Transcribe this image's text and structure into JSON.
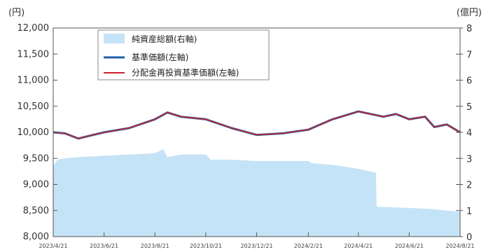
{
  "chart_data": {
    "type": "line",
    "left_unit": "(円)",
    "right_unit": "(億円)",
    "left_axis": {
      "min": 8000,
      "max": 12000,
      "ticks": [
        "8,000",
        "8,500",
        "9,000",
        "9,500",
        "10,000",
        "10,500",
        "11,000",
        "11,500",
        "12,000"
      ]
    },
    "right_axis": {
      "min": 0,
      "max": 8,
      "ticks": [
        "0",
        "1",
        "2",
        "3",
        "4",
        "5",
        "6",
        "7",
        "8"
      ]
    },
    "x_axis": {
      "start": "2023/4/21",
      "end": "2024/8/21",
      "tick_labels": [
        "2023/4/21",
        "2023/6/21",
        "2023/8/21",
        "2023/10/21",
        "2023/12/21",
        "2024/2/21",
        "2024/4/21",
        "2024/6/21",
        "2024/8/21"
      ]
    },
    "legend": {
      "placement": "top-left",
      "entries": [
        {
          "name": "純資産総額(右軸)",
          "color": "#c5e3f6",
          "kind": "area"
        },
        {
          "name": "基準価額(左軸)",
          "color": "#1f5fa8",
          "kind": "line"
        },
        {
          "name": "分配金再投資基準価額(左軸)",
          "color": "#c8232c",
          "kind": "line"
        }
      ]
    },
    "series": [
      {
        "name": "純資産総額(右軸)",
        "axis": "right",
        "points": [
          [
            "2023/4/21",
            2.7
          ],
          [
            "2023/4/26",
            2.95
          ],
          [
            "2023/5/5",
            3.0
          ],
          [
            "2023/5/21",
            3.05
          ],
          [
            "2023/6/21",
            3.1
          ],
          [
            "2023/7/21",
            3.15
          ],
          [
            "2023/8/21",
            3.2
          ],
          [
            "2023/8/31",
            3.35
          ],
          [
            "2023/9/5",
            3.05
          ],
          [
            "2023/9/21",
            3.15
          ],
          [
            "2023/10/21",
            3.15
          ],
          [
            "2023/10/27",
            2.95
          ],
          [
            "2023/11/21",
            2.95
          ],
          [
            "2023/12/21",
            2.9
          ],
          [
            "2024/1/21",
            2.9
          ],
          [
            "2024/2/21",
            2.9
          ],
          [
            "2024/2/25",
            2.82
          ],
          [
            "2024/3/21",
            2.75
          ],
          [
            "2024/4/21",
            2.6
          ],
          [
            "2024/5/6",
            2.5
          ],
          [
            "2024/5/12",
            2.45
          ],
          [
            "2024/5/13",
            1.15
          ],
          [
            "2024/6/21",
            1.1
          ],
          [
            "2024/7/21",
            1.05
          ],
          [
            "2024/8/21",
            0.95
          ]
        ]
      },
      {
        "name": "基準価額(左軸)",
        "axis": "left",
        "points": [
          [
            "2023/4/21",
            10000
          ],
          [
            "2023/5/5",
            9980
          ],
          [
            "2023/5/21",
            9880
          ],
          [
            "2023/6/21",
            10000
          ],
          [
            "2023/7/21",
            10080
          ],
          [
            "2023/8/21",
            10250
          ],
          [
            "2023/9/5",
            10380
          ],
          [
            "2023/9/21",
            10300
          ],
          [
            "2023/10/21",
            10250
          ],
          [
            "2023/11/21",
            10080
          ],
          [
            "2023/12/21",
            9950
          ],
          [
            "2024/1/21",
            9980
          ],
          [
            "2024/2/21",
            10050
          ],
          [
            "2024/3/21",
            10250
          ],
          [
            "2024/4/21",
            10400
          ],
          [
            "2024/5/21",
            10300
          ],
          [
            "2024/6/5",
            10350
          ],
          [
            "2024/6/21",
            10250
          ],
          [
            "2024/7/10",
            10300
          ],
          [
            "2024/7/21",
            10100
          ],
          [
            "2024/8/5",
            10150
          ],
          [
            "2024/8/21",
            10000
          ]
        ]
      },
      {
        "name": "分配金再投資基準価額(左軸)",
        "axis": "left",
        "points": [
          [
            "2023/4/21",
            10000
          ],
          [
            "2023/5/5",
            9980
          ],
          [
            "2023/5/21",
            9880
          ],
          [
            "2023/6/21",
            10000
          ],
          [
            "2023/7/21",
            10080
          ],
          [
            "2023/8/21",
            10250
          ],
          [
            "2023/9/5",
            10380
          ],
          [
            "2023/9/21",
            10300
          ],
          [
            "2023/10/21",
            10250
          ],
          [
            "2023/11/21",
            10080
          ],
          [
            "2023/12/21",
            9950
          ],
          [
            "2024/1/21",
            9980
          ],
          [
            "2024/2/21",
            10050
          ],
          [
            "2024/3/21",
            10250
          ],
          [
            "2024/4/21",
            10400
          ],
          [
            "2024/5/21",
            10300
          ],
          [
            "2024/6/5",
            10350
          ],
          [
            "2024/6/21",
            10250
          ],
          [
            "2024/7/10",
            10300
          ],
          [
            "2024/7/21",
            10100
          ],
          [
            "2024/8/5",
            10150
          ],
          [
            "2024/8/21",
            10000
          ]
        ]
      }
    ]
  }
}
